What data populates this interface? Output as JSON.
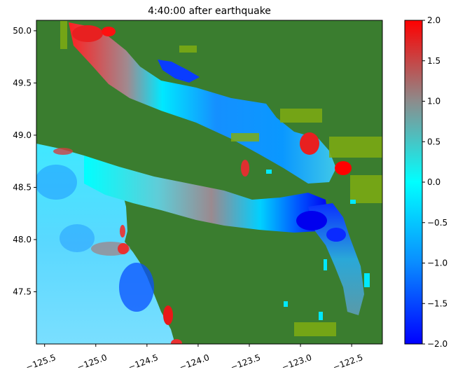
{
  "chart_data": {
    "type": "heatmap",
    "title": "4:40:00 after earthquake",
    "xlabel": "",
    "ylabel": "",
    "xlim": [
      -125.58,
      -122.2
    ],
    "ylim": [
      47.0,
      50.1
    ],
    "x_ticks": [
      -125.5,
      -125.0,
      -124.5,
      -124.0,
      -123.5,
      -123.0,
      -122.5
    ],
    "x_tick_labels": [
      "−125.5",
      "−125.0",
      "−124.5",
      "−124.0",
      "−123.5",
      "−123.0",
      "−122.5"
    ],
    "y_ticks": [
      47.5,
      48.0,
      48.5,
      49.0,
      49.5,
      50.0
    ],
    "y_tick_labels": [
      "47.5",
      "48.0",
      "48.5",
      "49.0",
      "49.5",
      "50.0"
    ],
    "land_color": "#3a7d2f",
    "shore_color": "#7fab12",
    "colorbar": {
      "min": -2.0,
      "max": 2.0,
      "ticks": [
        -2.0,
        -1.5,
        -1.0,
        -0.5,
        0.0,
        0.5,
        1.0,
        1.5,
        2.0
      ],
      "tick_labels": [
        "−2.0",
        "−1.5",
        "−1.0",
        "−0.5",
        "0.0",
        "0.5",
        "1.0",
        "1.5",
        "2.0"
      ],
      "colors": [
        {
          "value": -2.0,
          "color": "#0000ff"
        },
        {
          "value": -1.0,
          "color": "#0a8cff"
        },
        {
          "value": 0.0,
          "color": "#00ffff"
        },
        {
          "value": 1.0,
          "color": "#8c8c8c"
        },
        {
          "value": 2.0,
          "color": "#ff0000"
        }
      ]
    }
  }
}
